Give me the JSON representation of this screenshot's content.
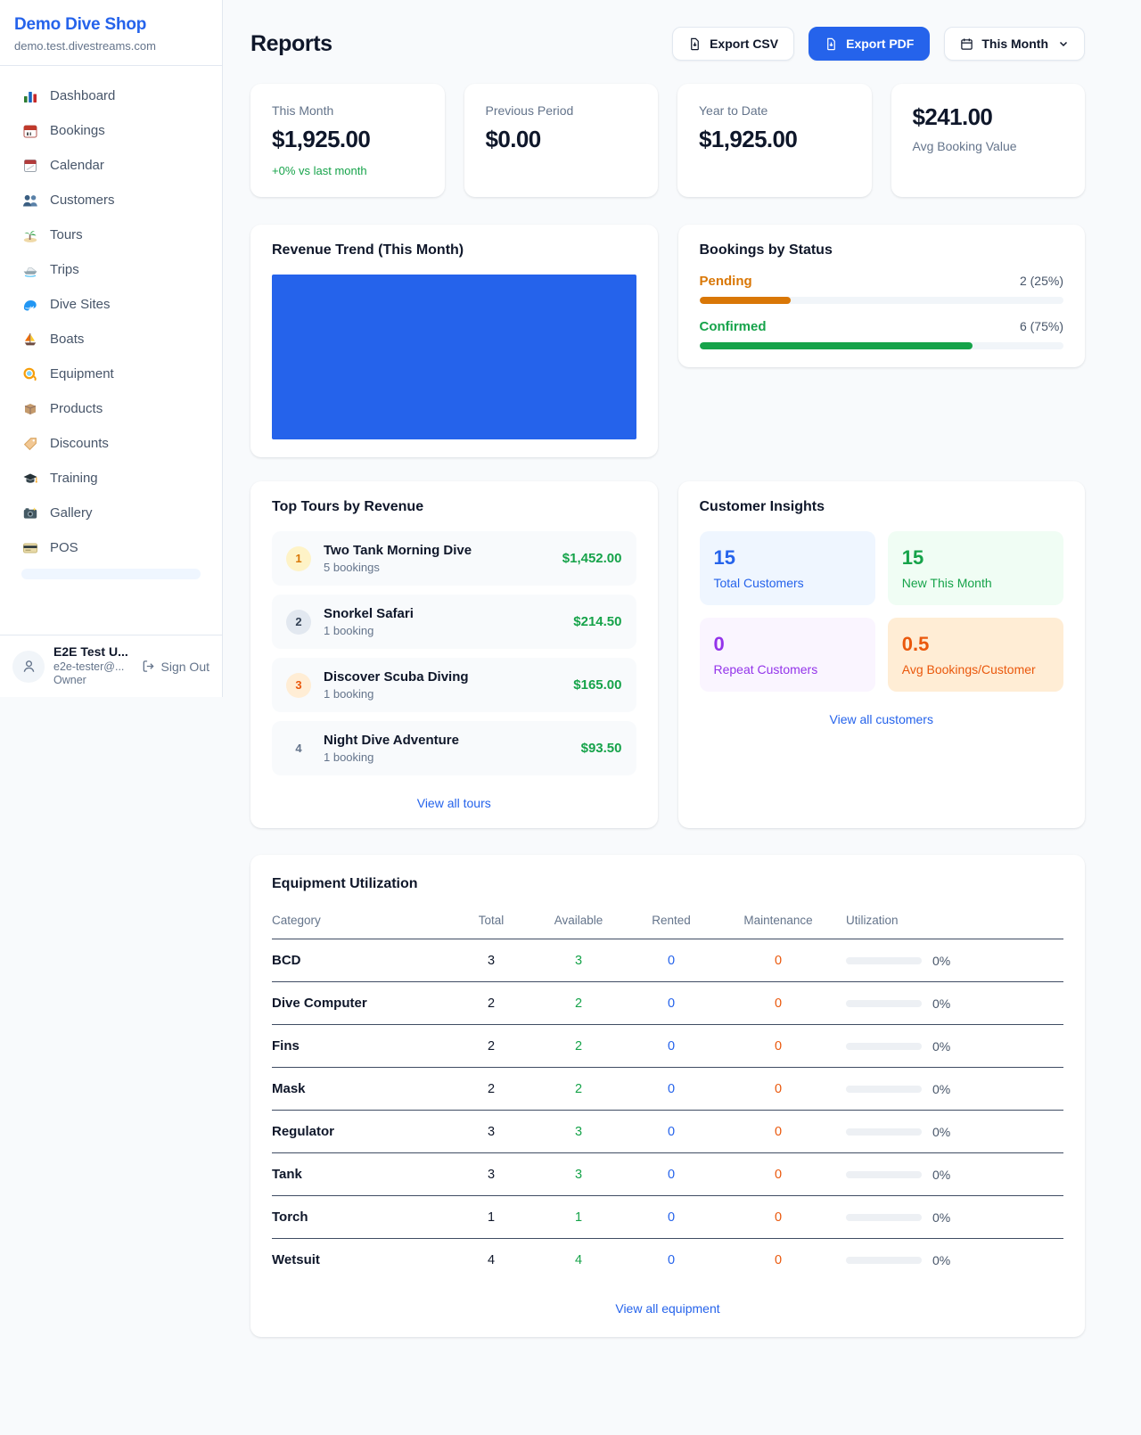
{
  "brand": {
    "name": "Demo Dive Shop",
    "domain": "demo.test.divestreams.com"
  },
  "sidebar": {
    "items": [
      {
        "icon": "dashboard-icon",
        "label": "Dashboard"
      },
      {
        "icon": "bookings-icon",
        "label": "Bookings"
      },
      {
        "icon": "calendar-icon",
        "label": "Calendar"
      },
      {
        "icon": "customers-icon",
        "label": "Customers"
      },
      {
        "icon": "tours-icon",
        "label": "Tours"
      },
      {
        "icon": "trips-icon",
        "label": "Trips"
      },
      {
        "icon": "dive-sites-icon",
        "label": "Dive Sites"
      },
      {
        "icon": "boats-icon",
        "label": "Boats"
      },
      {
        "icon": "equipment-icon",
        "label": "Equipment"
      },
      {
        "icon": "products-icon",
        "label": "Products"
      },
      {
        "icon": "discounts-icon",
        "label": "Discounts"
      },
      {
        "icon": "training-icon",
        "label": "Training"
      },
      {
        "icon": "gallery-icon",
        "label": "Gallery"
      },
      {
        "icon": "pos-icon",
        "label": "POS"
      }
    ],
    "user": {
      "name": "E2E Test U...",
      "email": "e2e-tester@...",
      "role": "Owner",
      "sign_out_label": "Sign Out"
    }
  },
  "header": {
    "title": "Reports",
    "export_csv_label": "Export CSV",
    "export_pdf_label": "Export PDF",
    "period_label": "This Month"
  },
  "stats": {
    "cards": [
      {
        "label": "This Month",
        "value": "$1,925.00",
        "delta": "+0% vs last month"
      },
      {
        "label": "Previous Period",
        "value": "$0.00"
      },
      {
        "label": "Year to Date",
        "value": "$1,925.00"
      },
      {
        "label": "Avg Booking Value",
        "value": "$241.00"
      }
    ]
  },
  "revenue_trend": {
    "title": "Revenue Trend (This Month)"
  },
  "bookings_by_status": {
    "title": "Bookings by Status",
    "rows": [
      {
        "label": "Pending",
        "value": "2 (25%)",
        "pct": 25,
        "color": "#d97706"
      },
      {
        "label": "Confirmed",
        "value": "6 (75%)",
        "pct": 75,
        "color": "#16a34a"
      }
    ]
  },
  "top_tours": {
    "title": "Top Tours by Revenue",
    "rows": [
      {
        "rank": "1",
        "name": "Two Tank Morning Dive",
        "bookings": "5 bookings",
        "revenue": "$1,452.00"
      },
      {
        "rank": "2",
        "name": "Snorkel Safari",
        "bookings": "1 booking",
        "revenue": "$214.50"
      },
      {
        "rank": "3",
        "name": "Discover Scuba Diving",
        "bookings": "1 booking",
        "revenue": "$165.00"
      },
      {
        "rank": "4",
        "name": "Night Dive Adventure",
        "bookings": "1 booking",
        "revenue": "$93.50"
      }
    ],
    "view_all": "View all tours"
  },
  "customer_insights": {
    "title": "Customer Insights",
    "tiles": [
      {
        "value": "15",
        "label": "Total Customers",
        "color": "#2563eb"
      },
      {
        "value": "15",
        "label": "New This Month",
        "color": "#16a34a"
      },
      {
        "value": "0",
        "label": "Repeat Customers",
        "color": "#9333ea"
      },
      {
        "value": "0.5",
        "label": "Avg Bookings/Customer",
        "color": "#ea580c"
      }
    ],
    "view_all": "View all customers"
  },
  "equipment": {
    "title": "Equipment Utilization",
    "columns": [
      "Category",
      "Total",
      "Available",
      "Rented",
      "Maintenance",
      "Utilization"
    ],
    "rows": [
      {
        "category": "BCD",
        "total": "3",
        "available": "3",
        "rented": "0",
        "maintenance": "0",
        "utilization": "0%",
        "utilization_pct": 0
      },
      {
        "category": "Dive Computer",
        "total": "2",
        "available": "2",
        "rented": "0",
        "maintenance": "0",
        "utilization": "0%",
        "utilization_pct": 0
      },
      {
        "category": "Fins",
        "total": "2",
        "available": "2",
        "rented": "0",
        "maintenance": "0",
        "utilization": "0%",
        "utilization_pct": 0
      },
      {
        "category": "Mask",
        "total": "2",
        "available": "2",
        "rented": "0",
        "maintenance": "0",
        "utilization": "0%",
        "utilization_pct": 0
      },
      {
        "category": "Regulator",
        "total": "3",
        "available": "3",
        "rented": "0",
        "maintenance": "0",
        "utilization": "0%",
        "utilization_pct": 0
      },
      {
        "category": "Tank",
        "total": "3",
        "available": "3",
        "rented": "0",
        "maintenance": "0",
        "utilization": "0%",
        "utilization_pct": 0
      },
      {
        "category": "Torch",
        "total": "1",
        "available": "1",
        "rented": "0",
        "maintenance": "0",
        "utilization": "0%",
        "utilization_pct": 0
      },
      {
        "category": "Wetsuit",
        "total": "4",
        "available": "4",
        "rented": "0",
        "maintenance": "0",
        "utilization": "0%",
        "utilization_pct": 0
      }
    ],
    "view_all": "View all equipment"
  },
  "colors": {
    "accent_blue": "#2563eb",
    "green": "#16a34a",
    "amber": "#d97706",
    "orange": "#ea580c",
    "purple": "#9333ea",
    "chart_bar": "#2563eb"
  }
}
